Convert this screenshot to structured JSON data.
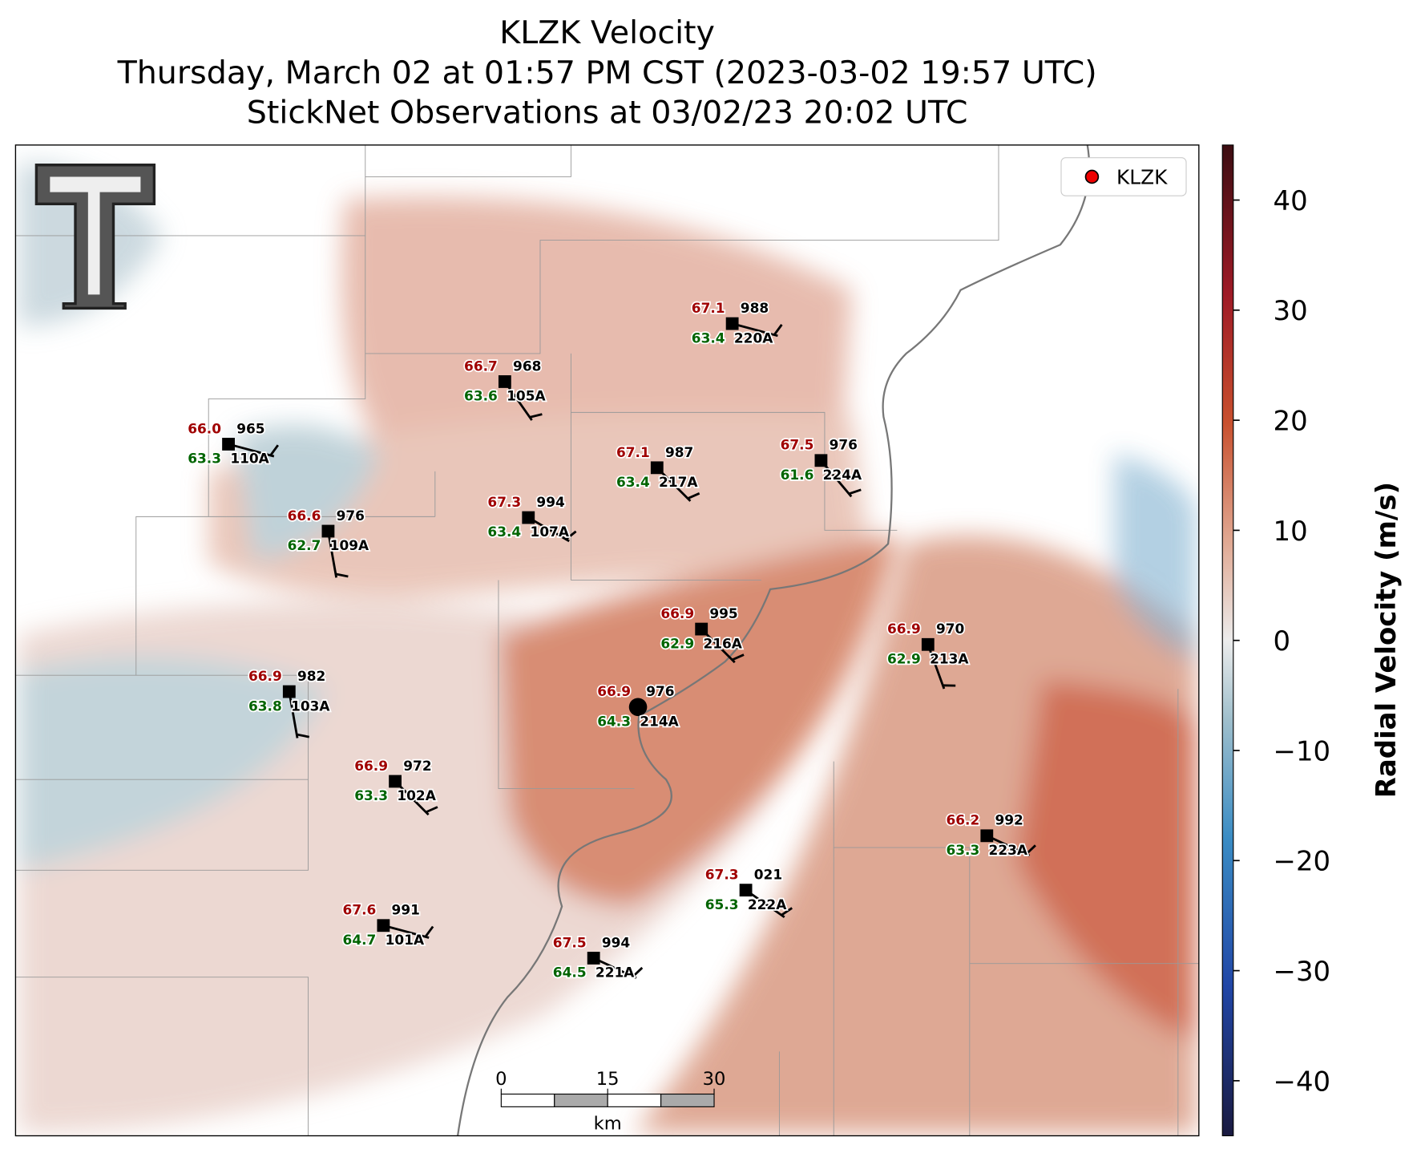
{
  "title": [
    "KLZK Velocity",
    "Thursday, March 02 at 01:57 PM CST (2023-03-02 19:57 UTC)",
    "StickNet Observations at 03/02/23 20:02 UTC"
  ],
  "legend": "KLZK",
  "stations": [
    {
      "id": "110A",
      "temperature": "66.0",
      "dewpoint": "63.3",
      "pressure": "965"
    },
    {
      "id": "105A",
      "temperature": "66.7",
      "dewpoint": "63.6",
      "pressure": "968"
    },
    {
      "id": "220A",
      "temperature": "67.1",
      "dewpoint": "63.4",
      "pressure": "988"
    },
    {
      "id": "217A",
      "temperature": "67.1",
      "dewpoint": "63.4",
      "pressure": "987"
    },
    {
      "id": "224A",
      "temperature": "67.5",
      "dewpoint": "61.6",
      "pressure": "976"
    },
    {
      "id": "109A",
      "temperature": "66.6",
      "dewpoint": "62.7",
      "pressure": "976"
    },
    {
      "id": "107A",
      "temperature": "67.3",
      "dewpoint": "63.4",
      "pressure": "994"
    },
    {
      "id": "216A",
      "temperature": "66.9",
      "dewpoint": "62.9",
      "pressure": "995"
    },
    {
      "id": "213A",
      "temperature": "66.9",
      "dewpoint": "62.9",
      "pressure": "970"
    },
    {
      "id": "103A",
      "temperature": "66.9",
      "dewpoint": "63.8",
      "pressure": "982"
    },
    {
      "id": "214A",
      "temperature": "66.9",
      "dewpoint": "64.3",
      "pressure": "976"
    },
    {
      "id": "102A",
      "temperature": "66.9",
      "dewpoint": "63.3",
      "pressure": "972"
    },
    {
      "id": "223A",
      "temperature": "66.2",
      "dewpoint": "63.3",
      "pressure": "992"
    },
    {
      "id": "222A",
      "temperature": "67.3",
      "dewpoint": "65.3",
      "pressure": "021"
    },
    {
      "id": "101A",
      "temperature": "67.6",
      "dewpoint": "64.7",
      "pressure": "991"
    },
    {
      "id": "221A",
      "temperature": "67.5",
      "dewpoint": "64.5",
      "pressure": "994"
    }
  ],
  "scale_bar": {
    "ticks": [
      0,
      15,
      30
    ],
    "unit": "km"
  },
  "colorbar": {
    "label": "Radial Velocity (m/s)",
    "lim": [
      -45,
      45
    ],
    "ticks": [
      {
        "value": -40,
        "label": "−40"
      },
      {
        "value": -30,
        "label": "−30"
      },
      {
        "value": -20,
        "label": "−20"
      },
      {
        "value": -10,
        "label": "−10"
      },
      0,
      10,
      20,
      30,
      40
    ]
  }
}
